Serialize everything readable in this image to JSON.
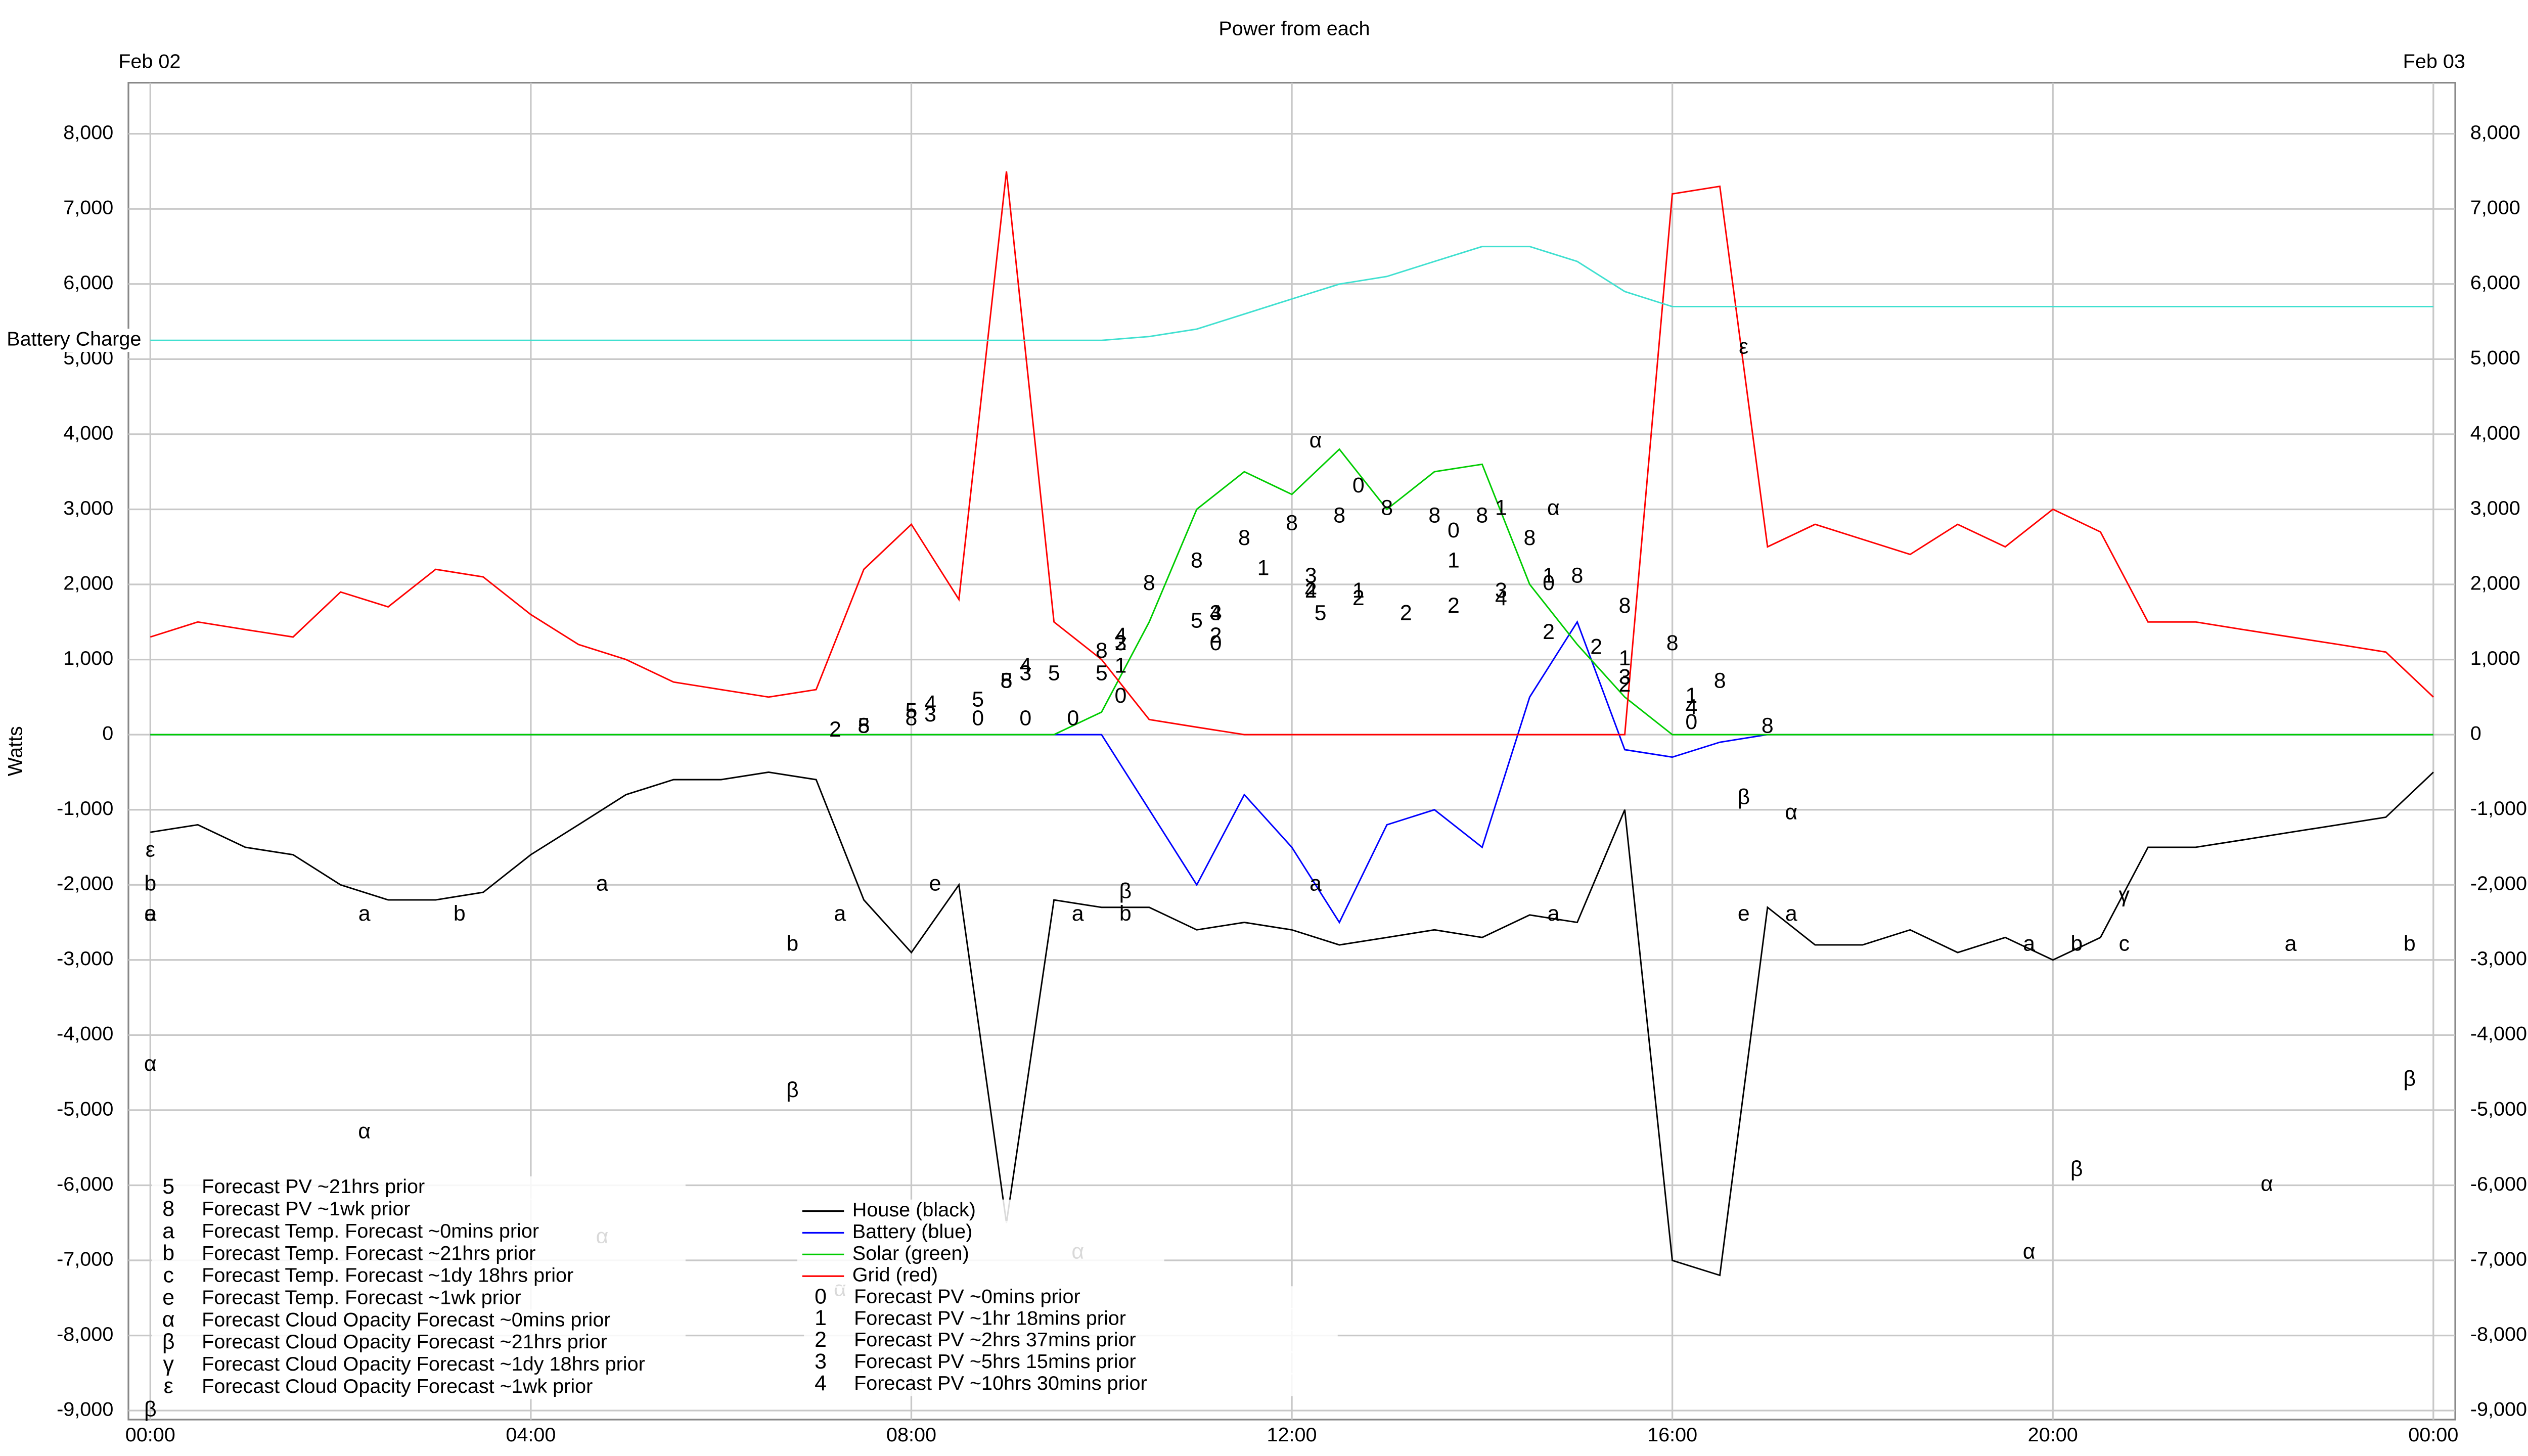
{
  "chart_data": {
    "type": "line",
    "title": "Power from each",
    "annotations": [
      "Feb 02",
      "Feb 03"
    ],
    "y_label": "Watts",
    "xlim": [
      -0.23,
      24.23
    ],
    "ylim": [
      -9120,
      8680
    ],
    "xticks": [
      {
        "value": 0,
        "label": "00:00"
      },
      {
        "value": 4,
        "label": "04:00"
      },
      {
        "value": 8,
        "label": "08:00"
      },
      {
        "value": 12,
        "label": "12:00"
      },
      {
        "value": 16,
        "label": "16:00"
      },
      {
        "value": 20,
        "label": "20:00"
      },
      {
        "value": 24,
        "label": "00:00"
      }
    ],
    "yticks": [
      {
        "value": -9000,
        "label": "-9,000"
      },
      {
        "value": -8000,
        "label": "-8,000"
      },
      {
        "value": -7000,
        "label": "-7,000"
      },
      {
        "value": -6000,
        "label": "-6,000"
      },
      {
        "value": -5000,
        "label": "-5,000"
      },
      {
        "value": -4000,
        "label": "-4,000"
      },
      {
        "value": -3000,
        "label": "-3,000"
      },
      {
        "value": -2000,
        "label": "-2,000"
      },
      {
        "value": -1000,
        "label": "-1,000"
      },
      0,
      {
        "value": 1000,
        "label": "1,000"
      },
      {
        "value": 2000,
        "label": "2,000"
      },
      {
        "value": 3000,
        "label": "3,000"
      },
      {
        "value": 4000,
        "label": "4,000"
      },
      {
        "value": 5000,
        "label": "5,000"
      },
      {
        "value": 6000,
        "label": "6,000"
      },
      {
        "value": 7000,
        "label": "7,000"
      },
      {
        "value": 8000,
        "label": "8,000"
      }
    ],
    "grid": true,
    "x": [
      0,
      0.5,
      1,
      1.5,
      2,
      2.5,
      3,
      3.5,
      4,
      4.5,
      5,
      5.5,
      6,
      6.5,
      7,
      7.5,
      8,
      8.5,
      9,
      9.5,
      10,
      10.5,
      11,
      11.5,
      12,
      12.5,
      13,
      13.5,
      14,
      14.5,
      15,
      15.5,
      16,
      16.5,
      17,
      17.5,
      18,
      18.5,
      19,
      19.5,
      20,
      20.5,
      21,
      21.5,
      22,
      22.5,
      23,
      23.5,
      24
    ],
    "series": [
      {
        "name": "House (black)",
        "color": "#000000",
        "values": [
          -1300,
          -1200,
          -1500,
          -1600,
          -2000,
          -2200,
          -2200,
          -2100,
          -1600,
          -1200,
          -800,
          -600,
          -600,
          -500,
          -600,
          -2200,
          -2900,
          -2000,
          -6500,
          -2200,
          -2300,
          -2300,
          -2600,
          -2500,
          -2600,
          -2800,
          -2700,
          -2600,
          -2700,
          -2400,
          -2500,
          -1000,
          -7000,
          -7200,
          -2300,
          -2800,
          -2800,
          -2600,
          -2900,
          -2700,
          -3000,
          -2700,
          -1500,
          -1500,
          -1400,
          -1300,
          -1200,
          -1100,
          -500
        ]
      },
      {
        "name": "Battery (blue)",
        "color": "#0000ff",
        "values": [
          0,
          0,
          0,
          0,
          0,
          0,
          0,
          0,
          0,
          0,
          0,
          0,
          0,
          0,
          0,
          0,
          0,
          0,
          0,
          0,
          0,
          -1000,
          -2000,
          -800,
          -1500,
          -2500,
          -1200,
          -1000,
          -1500,
          500,
          1500,
          -200,
          -300,
          -100,
          0,
          0,
          0,
          0,
          0,
          0,
          0,
          0,
          0,
          0,
          0,
          0,
          0,
          0,
          0
        ]
      },
      {
        "name": "Solar (green)",
        "color": "#00cc00",
        "values": [
          0,
          0,
          0,
          0,
          0,
          0,
          0,
          0,
          0,
          0,
          0,
          0,
          0,
          0,
          0,
          0,
          0,
          0,
          0,
          0,
          300,
          1500,
          3000,
          3500,
          3200,
          3800,
          3000,
          3500,
          3600,
          2000,
          1200,
          500,
          0,
          0,
          0,
          0,
          0,
          0,
          0,
          0,
          0,
          0,
          0,
          0,
          0,
          0,
          0,
          0,
          0
        ]
      },
      {
        "name": "Grid (red)",
        "color": "#ff0000",
        "values": [
          1300,
          1500,
          1400,
          1300,
          1900,
          1700,
          2200,
          2100,
          1600,
          1200,
          1000,
          700,
          600,
          500,
          600,
          2200,
          2800,
          1800,
          7500,
          1500,
          1000,
          200,
          100,
          0,
          0,
          0,
          0,
          0,
          0,
          0,
          0,
          0,
          7200,
          7300,
          2500,
          2800,
          2600,
          2400,
          2800,
          2500,
          3000,
          2700,
          1500,
          1500,
          1400,
          1300,
          1200,
          1100,
          500
        ]
      },
      {
        "name": "Battery Charge",
        "color": "#40e0d0",
        "in_legend": false,
        "values": [
          5250,
          5250,
          5250,
          5250,
          5250,
          5250,
          5250,
          5250,
          5250,
          5250,
          5250,
          5250,
          5250,
          5250,
          5250,
          5250,
          5250,
          5250,
          5250,
          5250,
          5250,
          5300,
          5400,
          5600,
          5800,
          6000,
          6100,
          6300,
          6500,
          6500,
          6300,
          5900,
          5700,
          5700,
          5700,
          5700,
          5700,
          5700,
          5700,
          5700,
          5700,
          5700,
          5700,
          5700,
          5700,
          5700,
          5700,
          5700,
          5700
        ]
      }
    ],
    "marker_series": [
      {
        "name": "Forecast PV ~21hrs prior",
        "marker": "5",
        "x": [
          7.5,
          8.0,
          8.7,
          9.0,
          9.5,
          10,
          11,
          12.3
        ],
        "values": [
          100,
          300,
          450,
          700,
          800,
          800,
          1500,
          1600
        ]
      },
      {
        "name": "Forecast PV ~1wk prior",
        "marker": "8",
        "x": [
          7.5,
          8.0,
          9.0,
          10.0,
          10.5,
          11,
          11.5,
          12.0,
          12.5,
          13,
          13.5,
          14,
          14.5,
          15,
          15.5,
          16,
          16.5,
          17
        ],
        "values": [
          100,
          200,
          700,
          1100,
          2000,
          2300,
          2600,
          2800,
          2900,
          3000,
          2900,
          2900,
          2600,
          2100,
          1700,
          1200,
          700,
          100
        ]
      },
      {
        "name": "Forecast Temp. Forecast ~0mins prior",
        "marker": "a",
        "x": [
          0,
          2.25,
          4.75,
          7.25,
          9.75,
          12.25,
          14.75,
          17.25,
          19.75,
          22.5
        ],
        "values": [
          -2400,
          -2400,
          -2000,
          -2400,
          -2400,
          -2000,
          -2400,
          -2400,
          -2800,
          -2800
        ]
      },
      {
        "name": "Forecast Temp. Forecast ~21hrs prior",
        "marker": "b",
        "x": [
          0,
          3.25,
          6.75,
          10.25,
          20.25,
          23.75
        ],
        "values": [
          -2000,
          -2400,
          -2800,
          -2400,
          -2800,
          -2800
        ]
      },
      {
        "name": "Forecast Temp. Forecast ~1dy 18hrs prior",
        "marker": "c",
        "x": [
          20.75
        ],
        "values": [
          -2800
        ]
      },
      {
        "name": "Forecast Temp. Forecast ~1wk prior",
        "marker": "e",
        "x": [
          0,
          8.25,
          16.75
        ],
        "values": [
          -2400,
          -2000,
          -2400
        ]
      },
      {
        "name": "Forecast Cloud Opacity Forecast ~0mins prior",
        "marker": "α",
        "x": [
          0,
          2.25,
          4.75,
          7.25,
          9.75,
          12.25,
          14.75,
          17.25,
          19.75,
          22.25
        ],
        "values": [
          -4400,
          -5300,
          -6700,
          -7400,
          -6900,
          3900,
          3000,
          -1050,
          -6900,
          -6000
        ]
      },
      {
        "name": "Forecast Cloud Opacity Forecast ~21hrs prior",
        "marker": "β",
        "x": [
          0,
          6.75,
          10.25,
          16.75,
          20.25,
          23.75
        ],
        "values": [
          -9000,
          -4750,
          -2100,
          -850,
          -5800,
          -4600
        ]
      },
      {
        "name": "Forecast Cloud Opacity Forecast ~1dy 18hrs prior",
        "marker": "γ",
        "x": [
          20.75
        ],
        "values": [
          -2150
        ]
      },
      {
        "name": "Forecast Cloud Opacity Forecast ~1wk prior",
        "marker": "ε",
        "x": [
          0,
          16.75
        ],
        "values": [
          -1550,
          5150
        ]
      },
      {
        "name": "Forecast PV ~0mins prior",
        "marker": "0",
        "x": [
          8.7,
          9.2,
          9.7,
          10.2,
          11.2,
          12.7,
          13.7,
          14.7,
          16.2
        ],
        "values": [
          200,
          200,
          200,
          500,
          1200,
          3300,
          2700,
          2000,
          150
        ]
      },
      {
        "name": "Forecast PV ~1hr 18mins prior",
        "marker": "1",
        "x": [
          10.2,
          11.7,
          12.7,
          13.7,
          14.2,
          14.7,
          15.5,
          16.2
        ],
        "values": [
          900,
          2200,
          1900,
          2300,
          3000,
          2100,
          1000,
          500
        ]
      },
      {
        "name": "Forecast PV ~2hrs 37mins prior",
        "marker": "2",
        "x": [
          7.2,
          10.2,
          11.2,
          12.2,
          12.7,
          13.2,
          13.7,
          14.7,
          15.2,
          15.5
        ],
        "values": [
          50,
          1200,
          1300,
          1900,
          1800,
          1600,
          1700,
          1350,
          1150,
          650
        ]
      },
      {
        "name": "Forecast PV ~5hrs 15mins prior",
        "marker": "3",
        "x": [
          8.2,
          9.2,
          10.2,
          11.2,
          12.2,
          14.2,
          15.5
        ],
        "values": [
          250,
          800,
          1200,
          1600,
          2100,
          1900,
          750
        ]
      },
      {
        "name": "Forecast PV ~10hrs 30mins prior",
        "marker": "4",
        "x": [
          8.2,
          9.2,
          10.2,
          11.2,
          12.2,
          14.2,
          16.2
        ],
        "values": [
          400,
          900,
          1300,
          1600,
          1900,
          1800,
          350
        ]
      }
    ]
  }
}
